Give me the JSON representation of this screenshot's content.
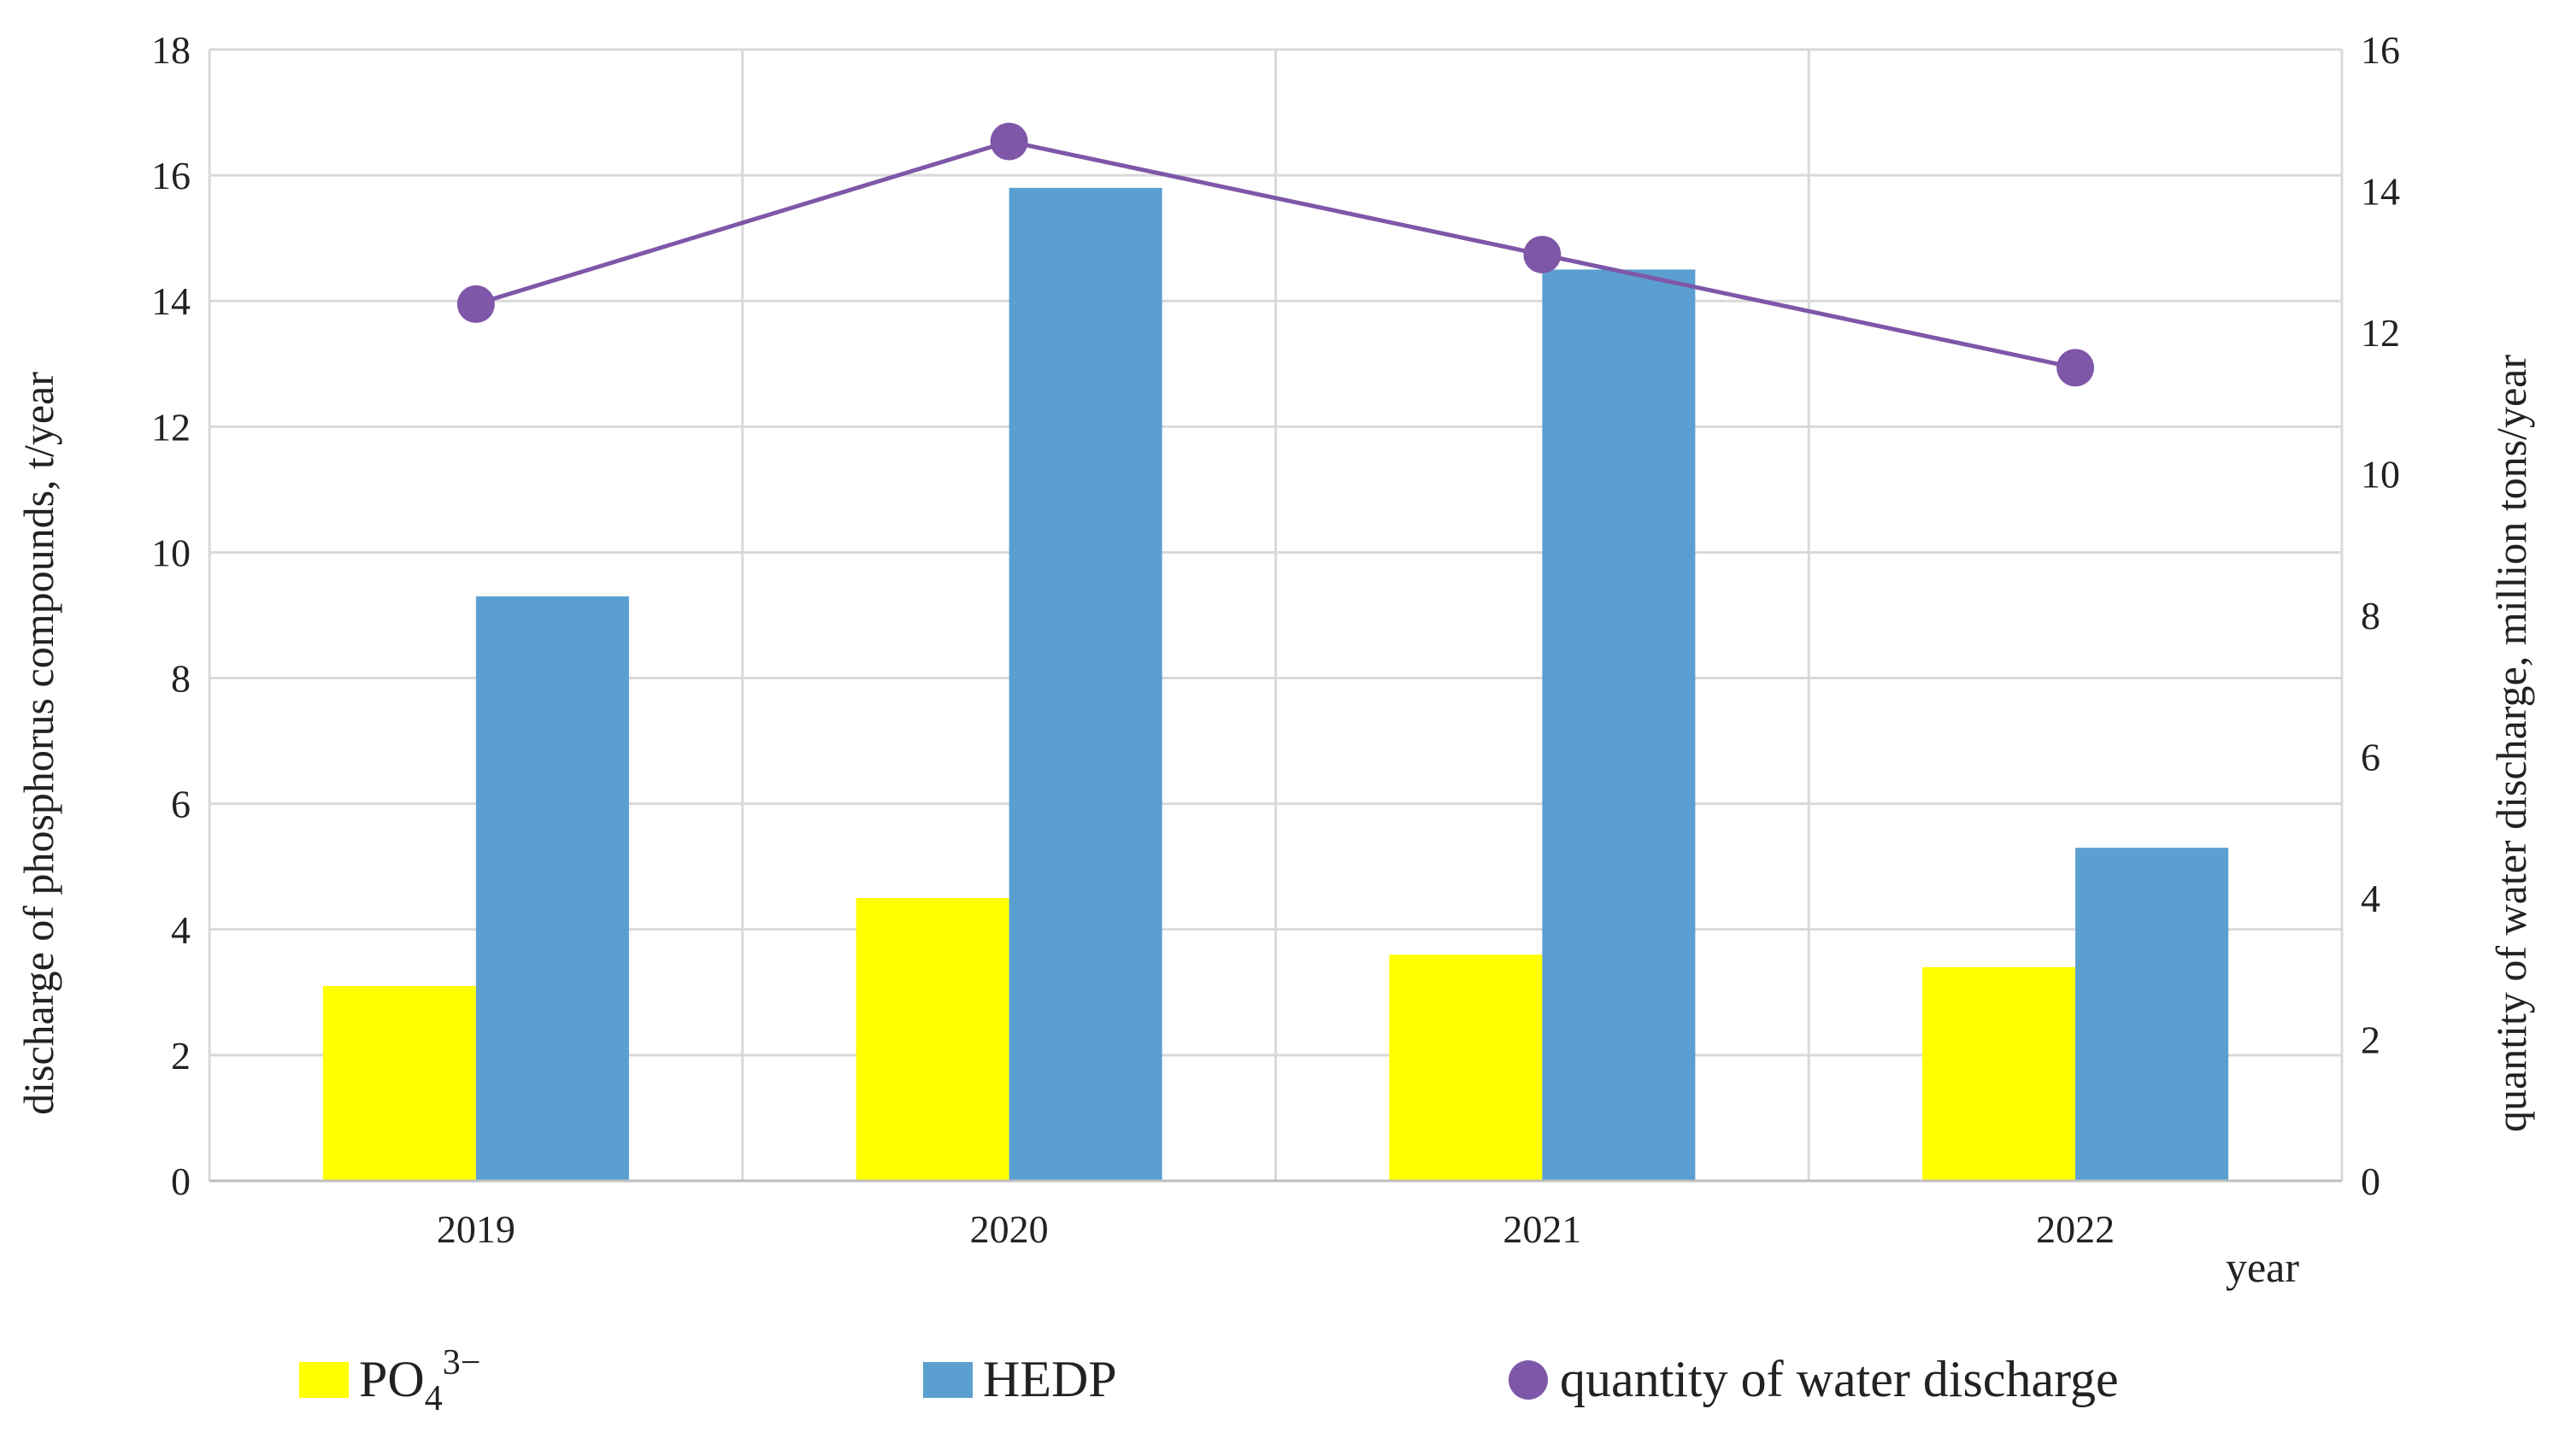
{
  "chart_data": {
    "type": "bar",
    "categories": [
      "2019",
      "2020",
      "2021",
      "2022"
    ],
    "xlabel": "year",
    "ylabel": "discharge of phosphorus compounds, t/year",
    "y2label": "quantity of water discharge, million tons/year",
    "ylim": [
      0,
      18
    ],
    "y2lim": [
      0,
      16
    ],
    "yticks": [
      "0",
      "2",
      "4",
      "6",
      "8",
      "10",
      "12",
      "14",
      "16",
      "18"
    ],
    "y2ticks": [
      "0",
      "2",
      "4",
      "6",
      "8",
      "10",
      "12",
      "14",
      "16"
    ],
    "grid": true,
    "series": [
      {
        "name": "PO4 3−",
        "type": "bar",
        "axis": "left",
        "color": "#ffff00",
        "values": [
          3.1,
          4.5,
          3.6,
          3.4
        ]
      },
      {
        "name": "HEDP",
        "type": "bar",
        "axis": "left",
        "color": "#5b9fd1",
        "values": [
          9.3,
          15.8,
          14.5,
          5.3
        ]
      },
      {
        "name": "quantity of water discharge",
        "type": "line",
        "axis": "right",
        "color": "#7e57a8",
        "values": [
          12.4,
          14.7,
          13.1,
          11.5
        ]
      }
    ]
  },
  "legend": {
    "po4_base": "PO",
    "po4_sub": "4",
    "po4_sup": "3−",
    "hedp": "HEDP",
    "water": "quantity of water discharge"
  }
}
